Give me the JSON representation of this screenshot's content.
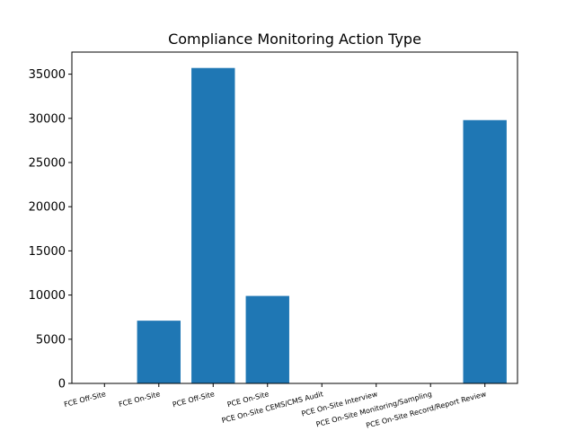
{
  "chart_data": {
    "type": "bar",
    "title": "Compliance Monitoring Action Type",
    "xlabel": "",
    "ylabel": "",
    "categories": [
      "FCE Off-Site",
      "FCE On-Site",
      "PCE Off-Site",
      "PCE On-Site",
      "PCE On-Site CEMS/CMS Audit",
      "PCE On-Site Interview",
      "PCE On-Site Monitoring/Sampling",
      "PCE On-Site Record/Report Review"
    ],
    "values": [
      0,
      7100,
      35700,
      9900,
      0,
      0,
      0,
      29800
    ],
    "ylim": [
      0,
      37500
    ],
    "yticks": [
      0,
      5000,
      10000,
      15000,
      20000,
      25000,
      30000,
      35000
    ],
    "grid": false,
    "bar_color": "#1f77b4",
    "x_tick_rotation_deg": -15
  }
}
